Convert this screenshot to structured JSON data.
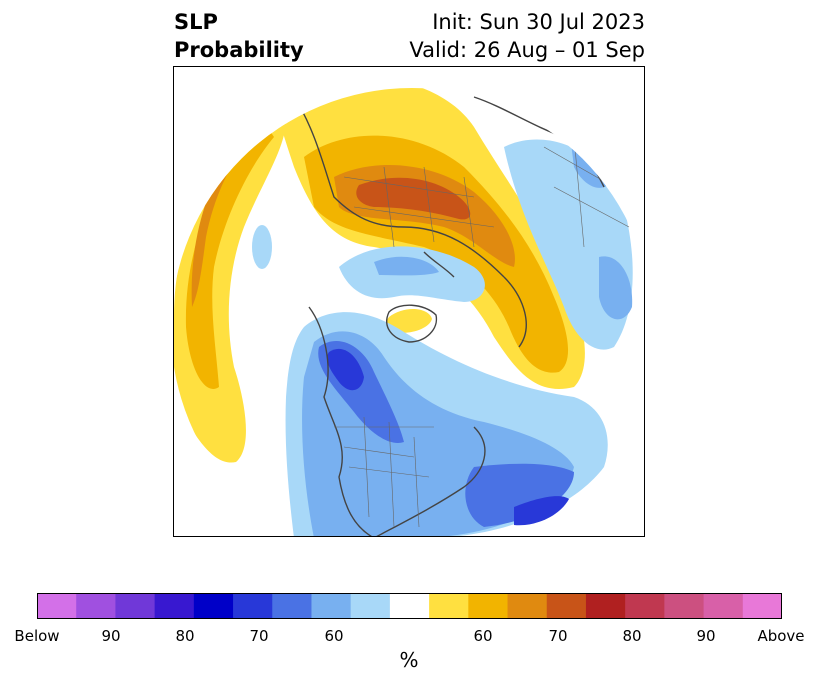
{
  "header": {
    "title_line1": "SLP",
    "title_line2": "Probability",
    "init_text": "Init: Sun 30 Jul 2023",
    "valid_text": "Valid: 26 Aug – 01 Sep"
  },
  "colorbar": {
    "unit": "%",
    "tick_labels": [
      "Below",
      "90",
      "80",
      "70",
      "60",
      "60",
      "70",
      "80",
      "90",
      "Above"
    ],
    "colors": [
      "#d370e8",
      "#a050e0",
      "#7038d8",
      "#3818d0",
      "#0000c8",
      "#2838d8",
      "#4a72e4",
      "#78b0f0",
      "#a8d8f8",
      "#ffffff",
      "#ffe040",
      "#f2b400",
      "#e08a10",
      "#c85418",
      "#b02020",
      "#c03850",
      "#cc5080",
      "#d860a8",
      "#e878d8"
    ]
  },
  "map_colors": {
    "land_outline": "#444444",
    "blue_light": "#a8d8f8",
    "blue_mid": "#78b0f0",
    "blue_strong": "#4a72e4",
    "blue_deep": "#2838d8",
    "yellow": "#ffe040",
    "gold": "#f2b400",
    "orange": "#e08a10",
    "rust": "#c85418"
  }
}
